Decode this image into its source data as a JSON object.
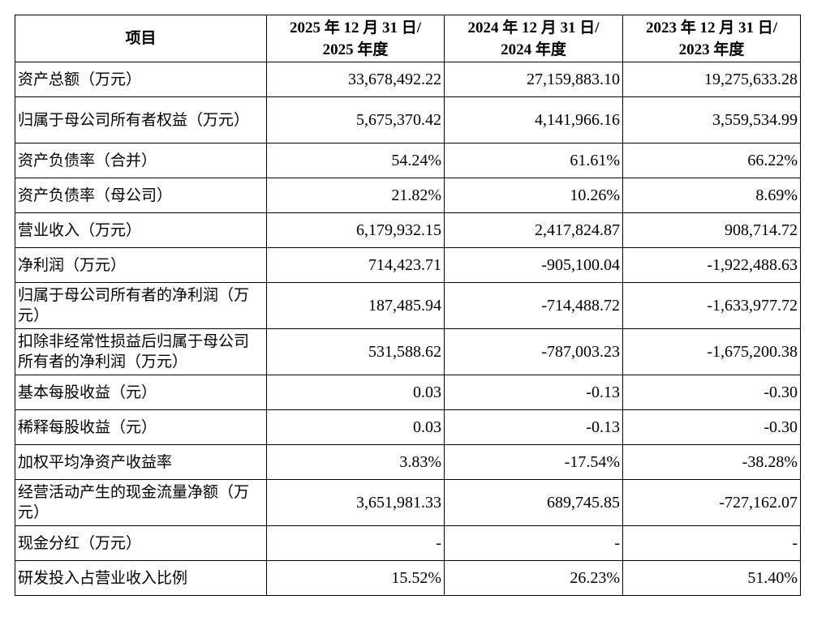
{
  "header": {
    "item": "项目",
    "col1_line1": "2025 年 12 月 31 日/",
    "col1_line2": "2025 年度",
    "col2_line1": "2024 年 12 月 31 日/",
    "col2_line2": "2024 年度",
    "col3_line1": "2023 年 12 月 31 日/",
    "col3_line2": "2023 年度"
  },
  "rows": [
    {
      "label": "资产总额（万元）",
      "v2025": "33,678,492.22",
      "v2024": "27,159,883.10",
      "v2023": "19,275,633.28"
    },
    {
      "label": "归属于母公司所有者权益（万元）",
      "v2025": "5,675,370.42",
      "v2024": "4,141,966.16",
      "v2023": "3,559,534.99"
    },
    {
      "label": "资产负债率（合并）",
      "v2025": "54.24%",
      "v2024": "61.61%",
      "v2023": "66.22%"
    },
    {
      "label": "资产负债率（母公司）",
      "v2025": "21.82%",
      "v2024": "10.26%",
      "v2023": "8.69%"
    },
    {
      "label": "营业收入（万元）",
      "v2025": "6,179,932.15",
      "v2024": "2,417,824.87",
      "v2023": "908,714.72"
    },
    {
      "label": "净利润（万元）",
      "v2025": "714,423.71",
      "v2024": "-905,100.04",
      "v2023": "-1,922,488.63"
    },
    {
      "label": "归属于母公司所有者的净利润（万元）",
      "v2025": "187,485.94",
      "v2024": "-714,488.72",
      "v2023": "-1,633,977.72"
    },
    {
      "label": "扣除非经常性损益后归属于母公司所有者的净利润（万元）",
      "v2025": "531,588.62",
      "v2024": "-787,003.23",
      "v2023": "-1,675,200.38"
    },
    {
      "label": "基本每股收益（元）",
      "v2025": "0.03",
      "v2024": "-0.13",
      "v2023": "-0.30"
    },
    {
      "label": "稀释每股收益（元）",
      "v2025": "0.03",
      "v2024": "-0.13",
      "v2023": "-0.30"
    },
    {
      "label": "加权平均净资产收益率",
      "v2025": "3.83%",
      "v2024": "-17.54%",
      "v2023": "-38.28%"
    },
    {
      "label": "经营活动产生的现金流量净额（万元）",
      "v2025": "3,651,981.33",
      "v2024": "689,745.85",
      "v2023": "-727,162.07"
    },
    {
      "label": "现金分红（万元）",
      "v2025": "-",
      "v2024": "-",
      "v2023": "-"
    },
    {
      "label": "研发投入占营业收入比例",
      "v2025": "15.52%",
      "v2024": "26.23%",
      "v2023": "51.40%"
    }
  ]
}
